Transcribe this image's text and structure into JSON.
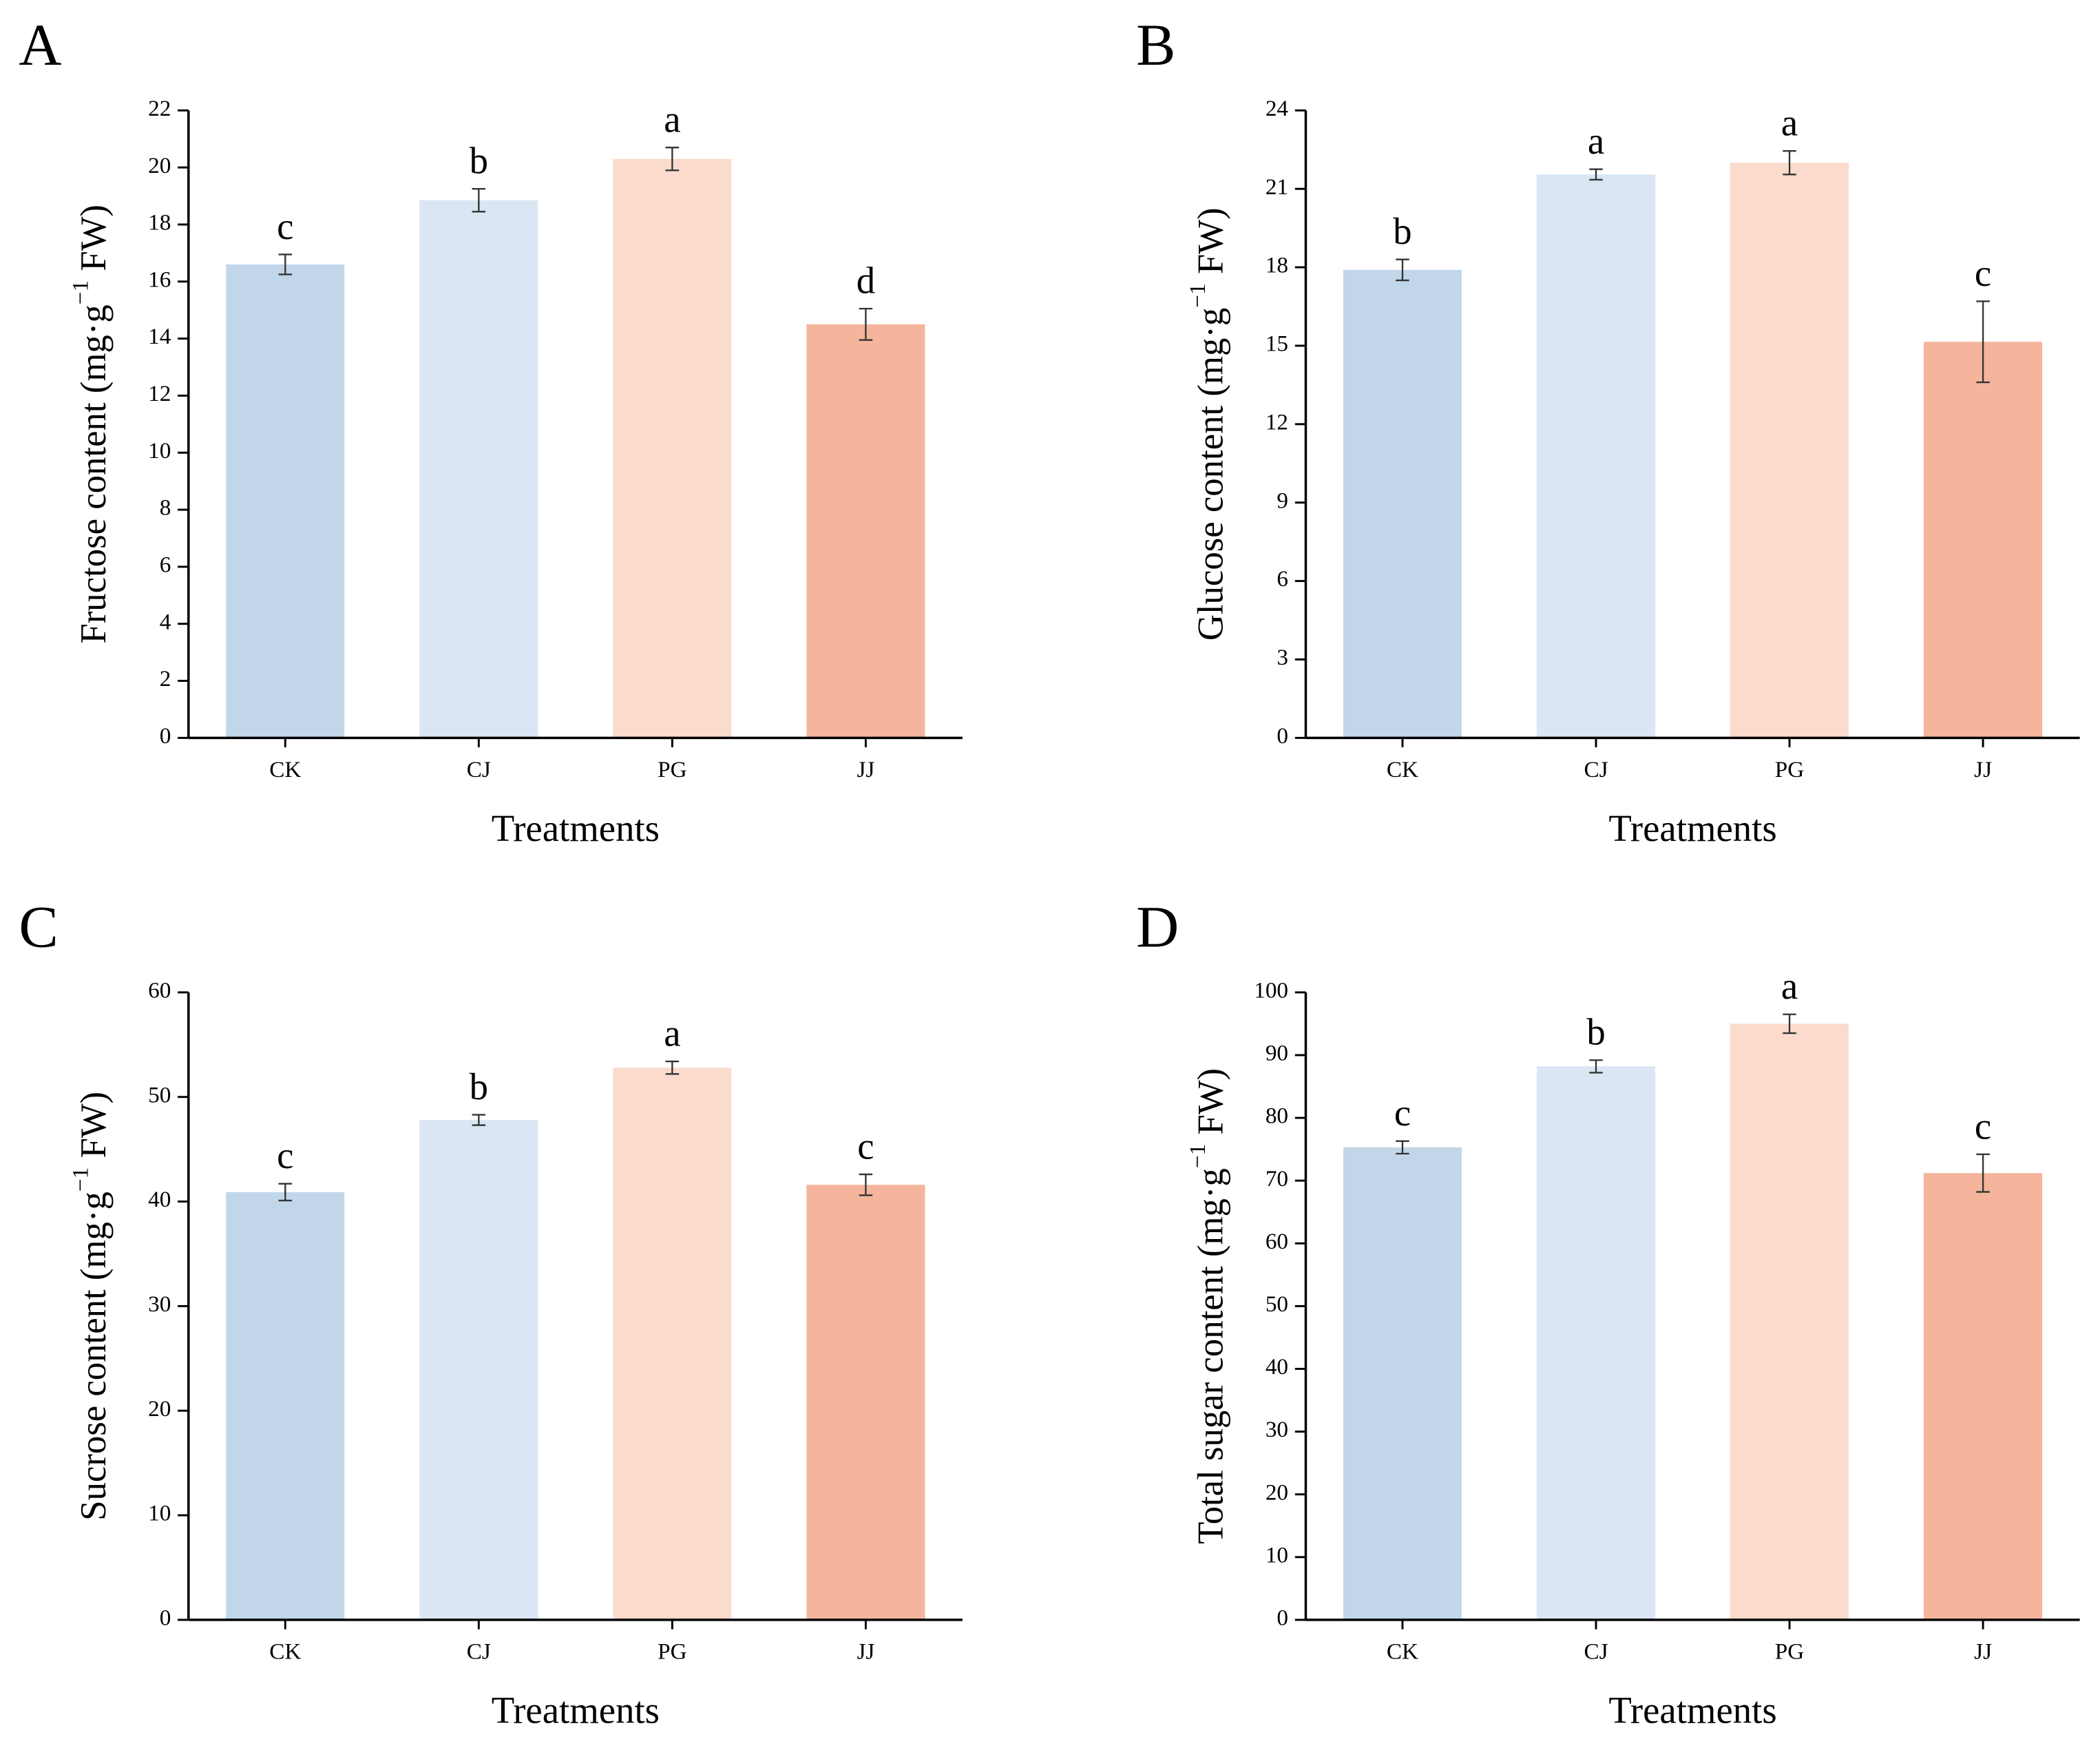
{
  "chart_data": [
    {
      "type": "bar",
      "panel": "A",
      "categories": [
        "CK",
        "CJ",
        "PG",
        "JJ"
      ],
      "values": [
        16.6,
        18.85,
        20.3,
        14.5
      ],
      "errors": [
        0.35,
        0.4,
        0.4,
        0.55
      ],
      "annotations": [
        "c",
        "b",
        "a",
        "d"
      ],
      "colors": [
        "#c2d6ea",
        "#dae6f3",
        "#fadbcc",
        "#f4b59c"
      ],
      "ylim": [
        0,
        22
      ],
      "yticks": [
        0,
        2,
        4,
        6,
        8,
        10,
        12,
        14,
        16,
        18,
        20,
        22
      ],
      "xlabel": "Treatments",
      "ylabel": [
        "Fructose content (mg·g",
        "−1",
        " FW)"
      ]
    },
    {
      "type": "bar",
      "panel": "B",
      "categories": [
        "CK",
        "CJ",
        "PG",
        "JJ"
      ],
      "values": [
        17.9,
        21.55,
        22.0,
        15.15
      ],
      "errors": [
        0.4,
        0.2,
        0.45,
        1.55
      ],
      "annotations": [
        "b",
        "a",
        "a",
        "c"
      ],
      "colors": [
        "#c2d6ea",
        "#dae6f3",
        "#fadbcc",
        "#f4b59c"
      ],
      "ylim": [
        0,
        24
      ],
      "yticks": [
        0,
        3,
        6,
        9,
        12,
        15,
        18,
        21,
        24
      ],
      "xlabel": "Treatments",
      "ylabel": [
        "Glucose content (mg·g",
        "−1",
        " FW)"
      ]
    },
    {
      "type": "bar",
      "panel": "C",
      "categories": [
        "CK",
        "CJ",
        "PG",
        "JJ"
      ],
      "values": [
        40.9,
        47.8,
        52.8,
        41.6
      ],
      "errors": [
        0.8,
        0.5,
        0.6,
        1.0
      ],
      "annotations": [
        "c",
        "b",
        "a",
        "c"
      ],
      "colors": [
        "#c2d6ea",
        "#dae6f3",
        "#fadbcc",
        "#f4b59c"
      ],
      "ylim": [
        0,
        60
      ],
      "yticks": [
        0,
        10,
        20,
        30,
        40,
        50,
        60
      ],
      "xlabel": "Treatments",
      "ylabel": [
        "Sucrose content (mg·g",
        "−1",
        " FW)"
      ]
    },
    {
      "type": "bar",
      "panel": "D",
      "categories": [
        "CK",
        "CJ",
        "PG",
        "JJ"
      ],
      "values": [
        75.3,
        88.2,
        95.0,
        71.2
      ],
      "errors": [
        1.0,
        1.0,
        1.5,
        3.0
      ],
      "annotations": [
        "c",
        "b",
        "a",
        "c"
      ],
      "colors": [
        "#c2d6ea",
        "#dae6f3",
        "#fadbcc",
        "#f4b59c"
      ],
      "ylim": [
        0,
        100
      ],
      "yticks": [
        0,
        10,
        20,
        30,
        40,
        50,
        60,
        70,
        80,
        90,
        100
      ],
      "xlabel": "Treatments",
      "ylabel": [
        "Total sugar content (mg·g",
        "−1",
        " FW)"
      ]
    }
  ]
}
